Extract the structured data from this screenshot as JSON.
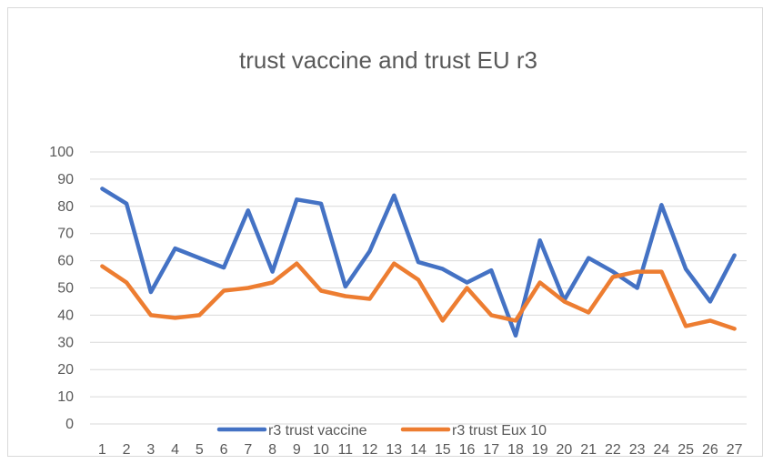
{
  "chart_data": {
    "type": "line",
    "title": "trust vaccine and trust EU r3",
    "xlabel": "",
    "ylabel": "",
    "x": [
      1,
      2,
      3,
      4,
      5,
      6,
      7,
      8,
      9,
      10,
      11,
      12,
      13,
      14,
      15,
      16,
      17,
      18,
      19,
      20,
      21,
      22,
      23,
      24,
      25,
      26,
      27
    ],
    "ylim": [
      0,
      100
    ],
    "yticks": [
      0,
      10,
      20,
      30,
      40,
      50,
      60,
      70,
      80,
      90,
      100
    ],
    "grid": true,
    "legend_position": "bottom",
    "series": [
      {
        "name": "r3 trust vaccine",
        "color": "#4472C4",
        "values": [
          86.5,
          81,
          48.5,
          64.5,
          61,
          57.5,
          78.5,
          56,
          82.5,
          81,
          50.5,
          63.5,
          84,
          59.5,
          57,
          52,
          56.5,
          32.5,
          67.5,
          45.5,
          61,
          56,
          50,
          80.5,
          57,
          45,
          62
        ]
      },
      {
        "name": "r3 trust Eux 10",
        "color": "#ED7D31",
        "values": [
          58,
          52,
          40,
          39,
          40,
          49,
          50,
          52,
          59,
          49,
          47,
          46,
          59,
          53,
          38,
          50,
          40,
          38,
          52,
          45,
          41,
          54,
          56,
          56,
          36,
          38,
          35
        ]
      }
    ]
  }
}
